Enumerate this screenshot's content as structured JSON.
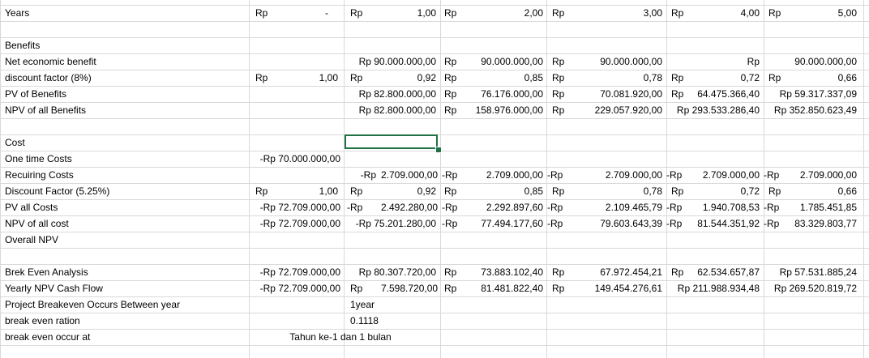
{
  "sheet": {
    "accent_color": "#217346",
    "rows": [
      [
        {
          "t": "Years"
        },
        {
          "t": "Rp"
        },
        {
          "t": "-"
        },
        {
          "t": "Rp"
        },
        {
          "t": "1,00"
        },
        {
          "t": "Rp"
        },
        {
          "t": "2,00"
        },
        {
          "t": "Rp"
        },
        {
          "t": "3,00"
        },
        {
          "t": "Rp"
        },
        {
          "t": "4,00"
        },
        {
          "t": "Rp"
        },
        {
          "t": "5,00"
        }
      ],
      [],
      [
        {
          "t": "Benefits"
        }
      ],
      [
        {
          "t": "Net economic benefit"
        },
        {
          "t": "Rp 90.000.000,00"
        },
        {
          "t": "Rp"
        },
        {
          "t": "90.000.000,00"
        },
        {
          "t": "Rp"
        },
        {
          "t": "90.000.000,00"
        },
        {
          "t": "Rp"
        },
        {
          "t": "90.000.000,00"
        },
        {
          "t": "Rp 90.000.000,00"
        }
      ],
      [
        {
          "t": "discount factor (8%)"
        },
        {
          "t": "Rp"
        },
        {
          "t": "1,00"
        },
        {
          "t": "Rp"
        },
        {
          "t": "0,92"
        },
        {
          "t": "Rp"
        },
        {
          "t": "0,85"
        },
        {
          "t": "Rp"
        },
        {
          "t": "0,78"
        },
        {
          "t": "Rp"
        },
        {
          "t": "0,72"
        },
        {
          "t": "Rp"
        },
        {
          "t": "0,66"
        }
      ],
      [
        {
          "t": "PV of Benefits"
        },
        {
          "t": "Rp 82.800.000,00"
        },
        {
          "t": "Rp"
        },
        {
          "t": "76.176.000,00"
        },
        {
          "t": "Rp"
        },
        {
          "t": "70.081.920,00"
        },
        {
          "t": "Rp"
        },
        {
          "t": "64.475.366,40"
        },
        {
          "t": "Rp 59.317.337,09"
        }
      ],
      [
        {
          "t": "NPV of all Benefits"
        },
        {
          "t": "Rp 82.800.000,00"
        },
        {
          "t": "Rp"
        },
        {
          "t": "158.976.000,00"
        },
        {
          "t": "Rp"
        },
        {
          "t": "229.057.920,00"
        },
        {
          "t": "Rp 293.533.286,40"
        },
        {
          "t": "Rp 352.850.623,49"
        }
      ],
      [],
      [
        {
          "t": "Cost"
        }
      ],
      [
        {
          "t": "One time Costs"
        },
        {
          "t": "-Rp 70.000.000,00"
        }
      ],
      [
        {
          "t": "Recuiring Costs"
        },
        {
          "t": "-Rp"
        },
        {
          "t": "2.709.000,00"
        },
        {
          "t": "-Rp"
        },
        {
          "t": "2.709.000,00"
        },
        {
          "t": "-Rp"
        },
        {
          "t": "2.709.000,00"
        },
        {
          "t": "-Rp"
        },
        {
          "t": "2.709.000,00"
        },
        {
          "t": "-Rp"
        },
        {
          "t": "2.709.000,00"
        }
      ],
      [
        {
          "t": "Discount Factor (5.25%)"
        },
        {
          "t": "Rp"
        },
        {
          "t": "1,00"
        },
        {
          "t": "Rp"
        },
        {
          "t": "0,92"
        },
        {
          "t": "Rp"
        },
        {
          "t": "0,85"
        },
        {
          "t": "Rp"
        },
        {
          "t": "0,78"
        },
        {
          "t": "Rp"
        },
        {
          "t": "0,72"
        },
        {
          "t": "Rp"
        },
        {
          "t": "0,66"
        }
      ],
      [
        {
          "t": "PV all Costs"
        },
        {
          "t": "-Rp 72.709.000,00"
        },
        {
          "t": "-Rp"
        },
        {
          "t": "2.492.280,00"
        },
        {
          "t": "-Rp"
        },
        {
          "t": "2.292.897,60"
        },
        {
          "t": "-Rp"
        },
        {
          "t": "2.109.465,79"
        },
        {
          "t": "-Rp"
        },
        {
          "t": "1.940.708,53"
        },
        {
          "t": "-Rp"
        },
        {
          "t": "1.785.451,85"
        }
      ],
      [
        {
          "t": "NPV of all cost"
        },
        {
          "t": "-Rp 72.709.000,00"
        },
        {
          "t": "-Rp 75.201.280,00"
        },
        {
          "t": "-Rp"
        },
        {
          "t": "77.494.177,60"
        },
        {
          "t": "-Rp"
        },
        {
          "t": "79.603.643,39"
        },
        {
          "t": "-Rp"
        },
        {
          "t": "81.544.351,92"
        },
        {
          "t": "-Rp"
        },
        {
          "t": "83.329.803,77"
        }
      ],
      [
        {
          "t": "Overall NPV"
        }
      ],
      [],
      [
        {
          "t": "Brek Even Analysis"
        },
        {
          "t": "-Rp 72.709.000,00"
        },
        {
          "t": "Rp 80.307.720,00"
        },
        {
          "t": "Rp"
        },
        {
          "t": "73.883.102,40"
        },
        {
          "t": "Rp"
        },
        {
          "t": "67.972.454,21"
        },
        {
          "t": "Rp"
        },
        {
          "t": "62.534.657,87"
        },
        {
          "t": "Rp 57.531.885,24"
        }
      ],
      [
        {
          "t": "Yearly NPV Cash Flow"
        },
        {
          "t": "-Rp 72.709.000,00"
        },
        {
          "t": "Rp"
        },
        {
          "t": "7.598.720,00"
        },
        {
          "t": "Rp"
        },
        {
          "t": "81.481.822,40"
        },
        {
          "t": "Rp"
        },
        {
          "t": "149.454.276,61"
        },
        {
          "t": "Rp 211.988.934,48"
        },
        {
          "t": "Rp 269.520.819,72"
        }
      ],
      [
        {
          "t": "Project Breakeven Occurs Between year"
        },
        {
          "t": "1year"
        }
      ],
      [
        {
          "t": "break even ration"
        },
        {
          "t": "0.1118"
        }
      ],
      [
        {
          "t": "break even occur at"
        },
        {
          "t": "Tahun ke-1 dan 1 bulan"
        }
      ]
    ]
  }
}
